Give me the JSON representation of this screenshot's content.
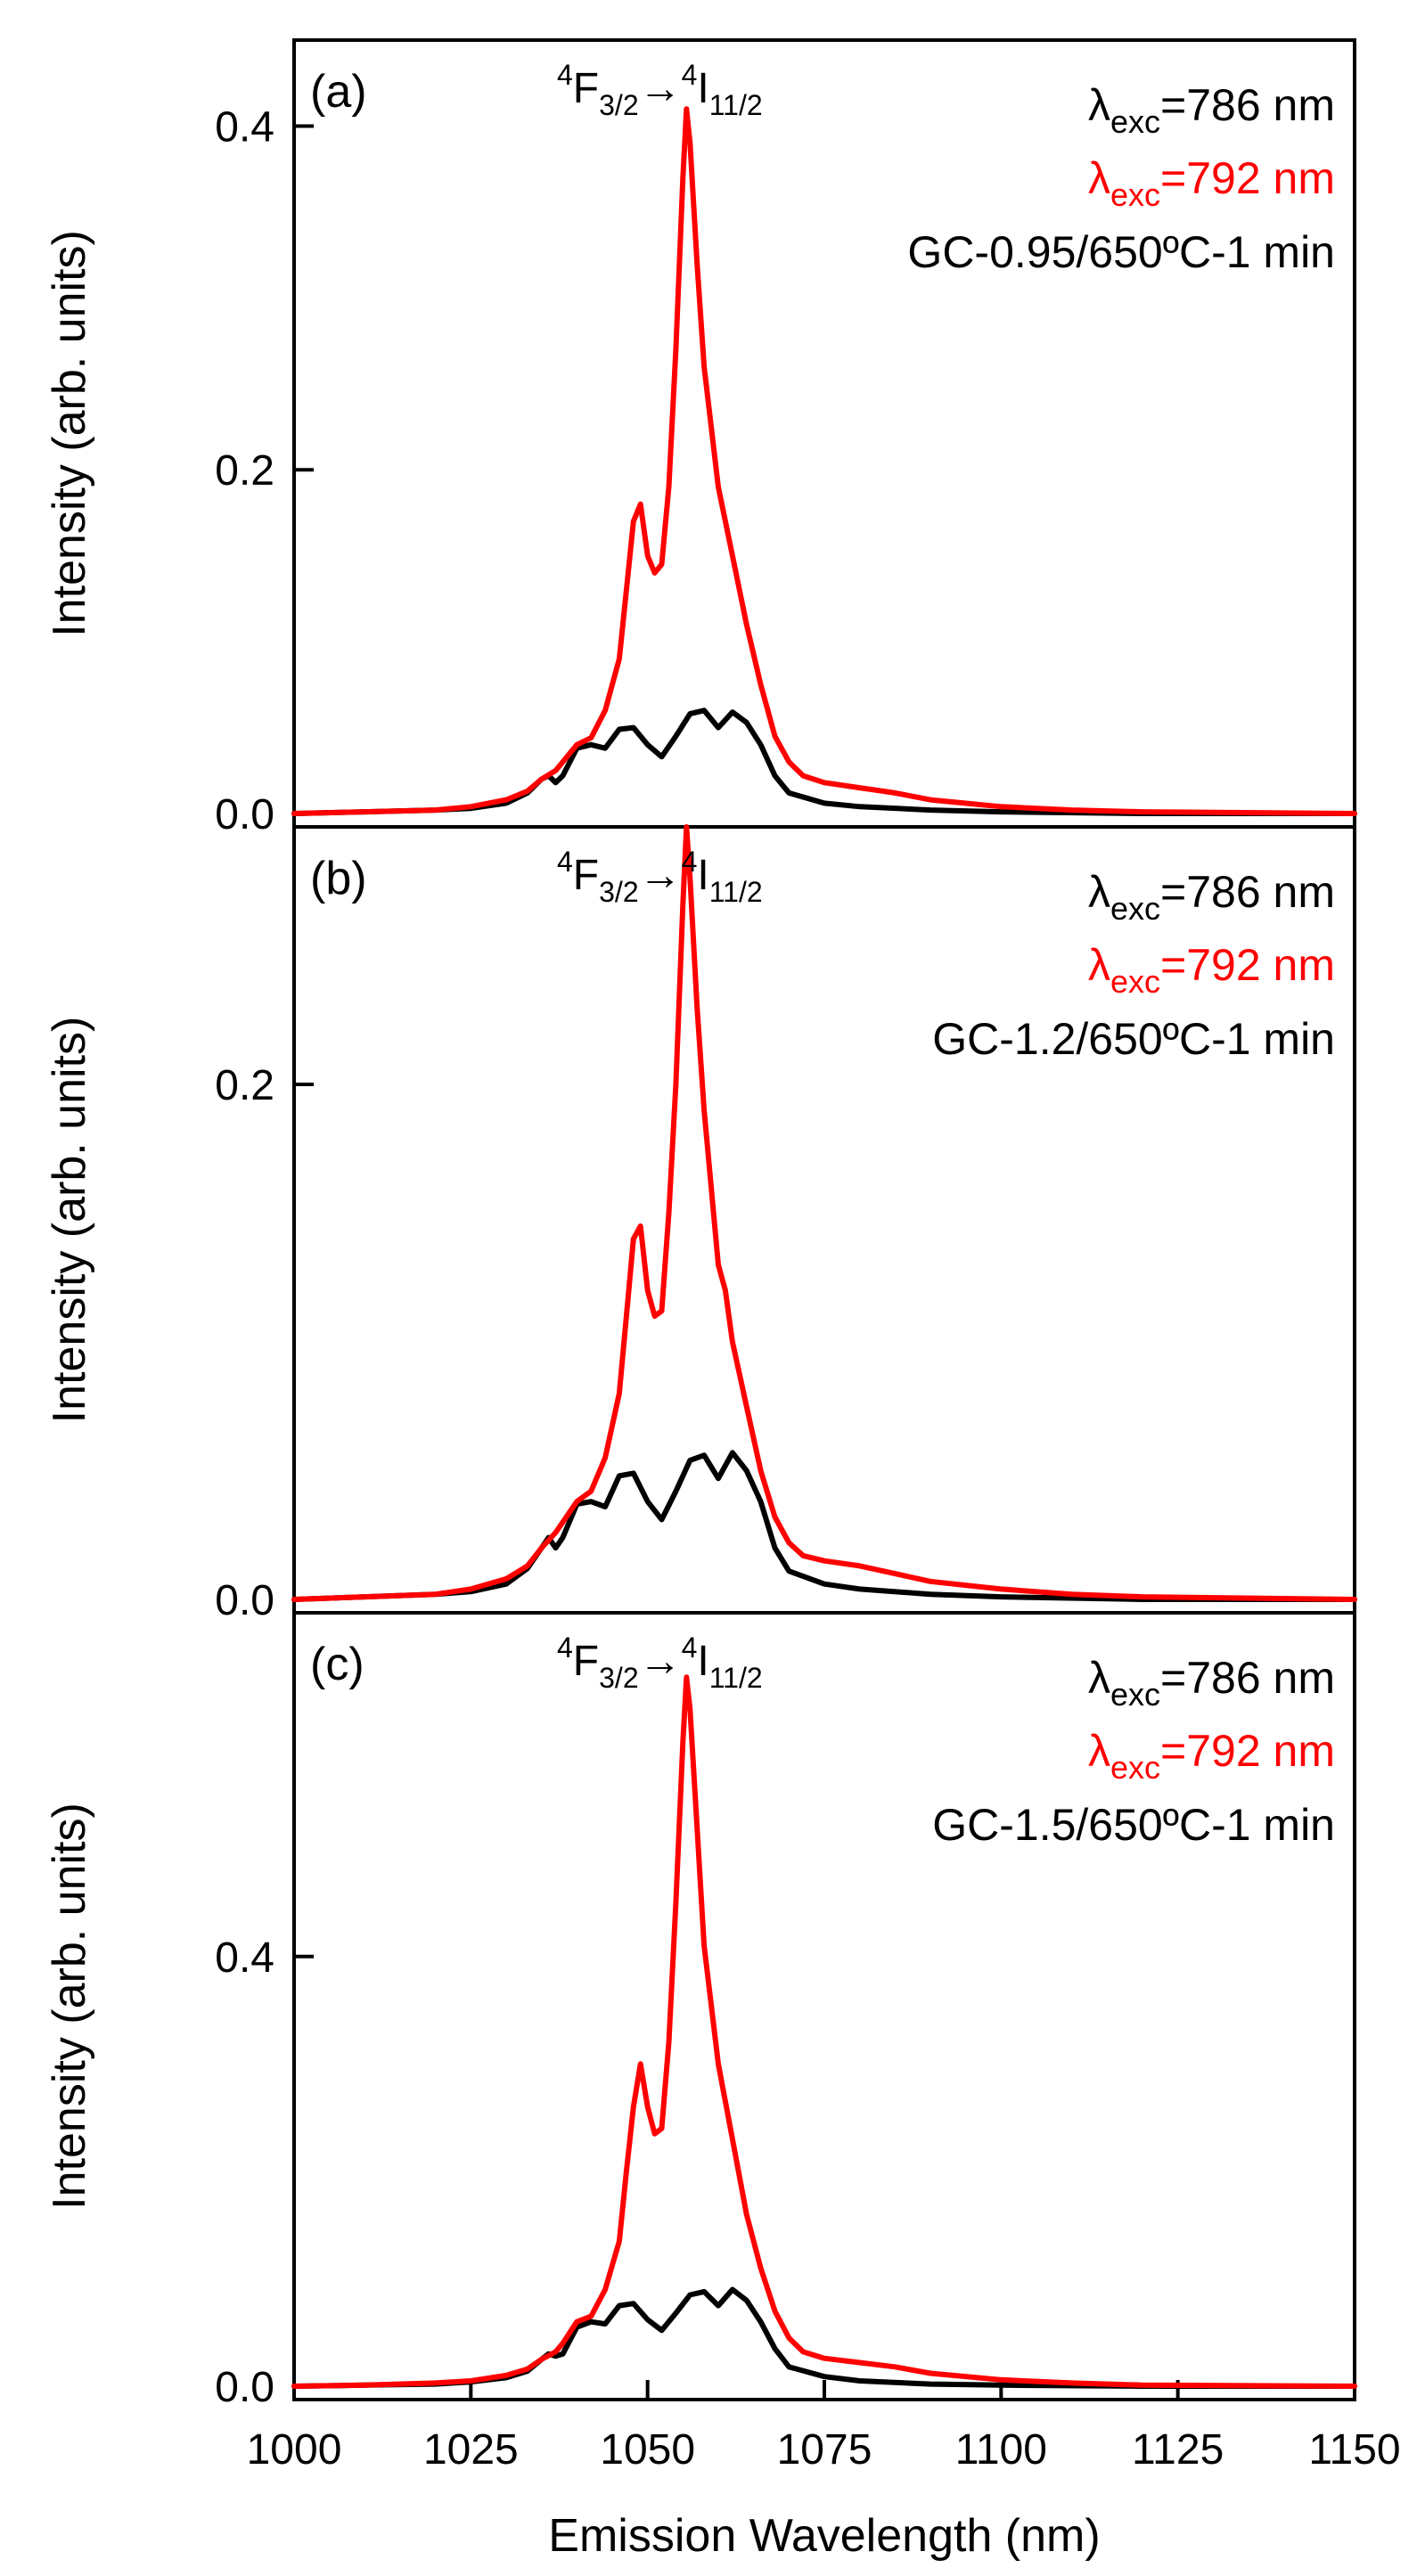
{
  "chart_data": [
    {
      "type": "line",
      "panel_label": "(a)",
      "transition": {
        "upper_sup": "4",
        "upper_main": "F",
        "upper_sub": "3/2",
        "arrow": "→",
        "lower_sup": "4",
        "lower_main": "I",
        "lower_sub": "11/2"
      },
      "legend": [
        {
          "prefix": "λ",
          "sub": "exc",
          "rest": "=786 nm",
          "color": "#000000"
        },
        {
          "prefix": "λ",
          "sub": "exc",
          "rest": "=792 nm",
          "color": "#ff0000"
        }
      ],
      "sample": "GC-0.95/650ºC-1 min",
      "ylabel": "Intensity (arb. units)",
      "xlim": [
        1000,
        1150
      ],
      "ylim": [
        0,
        0.45
      ],
      "yticks": [
        0.0,
        0.2,
        0.4
      ],
      "ytick_labels": [
        "0.0",
        "0.2",
        "0.4"
      ],
      "series": [
        {
          "color": "#000000",
          "x": [
            1000,
            1010,
            1020,
            1025,
            1030,
            1033,
            1035,
            1036,
            1037,
            1038,
            1040,
            1042,
            1044,
            1046,
            1048,
            1050,
            1052,
            1054,
            1056,
            1058,
            1060,
            1062,
            1064,
            1066,
            1068,
            1070,
            1075,
            1080,
            1090,
            1100,
            1120,
            1150
          ],
          "y": [
            0,
            0.001,
            0.002,
            0.003,
            0.006,
            0.012,
            0.02,
            0.022,
            0.018,
            0.022,
            0.038,
            0.04,
            0.038,
            0.049,
            0.05,
            0.04,
            0.033,
            0.045,
            0.058,
            0.06,
            0.05,
            0.059,
            0.053,
            0.04,
            0.022,
            0.012,
            0.006,
            0.004,
            0.002,
            0.001,
            0,
            0
          ]
        },
        {
          "color": "#ff0000",
          "x": [
            1000,
            1010,
            1020,
            1025,
            1030,
            1033,
            1035,
            1037,
            1038,
            1040,
            1042,
            1044,
            1046,
            1047,
            1048,
            1049,
            1050,
            1051,
            1052,
            1053,
            1054,
            1055,
            1055.5,
            1056,
            1057,
            1058,
            1060,
            1062,
            1064,
            1066,
            1068,
            1070,
            1072,
            1075,
            1080,
            1085,
            1090,
            1100,
            1110,
            1120,
            1150
          ],
          "y": [
            0,
            0.001,
            0.002,
            0.004,
            0.008,
            0.013,
            0.02,
            0.025,
            0.03,
            0.04,
            0.044,
            0.06,
            0.09,
            0.13,
            0.17,
            0.18,
            0.15,
            0.14,
            0.145,
            0.19,
            0.27,
            0.37,
            0.41,
            0.39,
            0.32,
            0.26,
            0.19,
            0.15,
            0.11,
            0.075,
            0.045,
            0.03,
            0.022,
            0.018,
            0.015,
            0.012,
            0.008,
            0.004,
            0.002,
            0.001,
            0
          ]
        }
      ]
    },
    {
      "type": "line",
      "panel_label": "(b)",
      "transition": {
        "upper_sup": "4",
        "upper_main": "F",
        "upper_sub": "3/2",
        "arrow": "→",
        "lower_sup": "4",
        "lower_main": "I",
        "lower_sub": "11/2"
      },
      "legend": [
        {
          "prefix": "λ",
          "sub": "exc",
          "rest": "=786 nm",
          "color": "#000000"
        },
        {
          "prefix": "λ",
          "sub": "exc",
          "rest": "=792 nm",
          "color": "#ff0000"
        }
      ],
      "sample": "GC-1.2/650ºC-1 min",
      "ylabel": "Intensity (arb. units)",
      "xlim": [
        1000,
        1150
      ],
      "ylim": [
        0,
        0.3
      ],
      "yticks": [
        0.0,
        0.2
      ],
      "ytick_labels": [
        "0.0",
        "0.2"
      ],
      "series": [
        {
          "color": "#000000",
          "x": [
            1000,
            1010,
            1020,
            1025,
            1030,
            1033,
            1035,
            1036,
            1037,
            1038,
            1040,
            1042,
            1044,
            1046,
            1048,
            1050,
            1052,
            1054,
            1056,
            1058,
            1060,
            1062,
            1064,
            1066,
            1068,
            1070,
            1075,
            1080,
            1090,
            1100,
            1120,
            1150
          ],
          "y": [
            0,
            0.001,
            0.002,
            0.003,
            0.006,
            0.012,
            0.02,
            0.024,
            0.02,
            0.024,
            0.037,
            0.038,
            0.036,
            0.048,
            0.049,
            0.038,
            0.031,
            0.042,
            0.054,
            0.056,
            0.047,
            0.057,
            0.05,
            0.038,
            0.02,
            0.011,
            0.006,
            0.004,
            0.002,
            0.001,
            0,
            0
          ]
        },
        {
          "color": "#ff0000",
          "x": [
            1000,
            1010,
            1020,
            1025,
            1030,
            1033,
            1035,
            1037,
            1038,
            1040,
            1042,
            1044,
            1046,
            1047,
            1048,
            1049,
            1050,
            1051,
            1052,
            1053,
            1054,
            1055,
            1055.5,
            1056,
            1057,
            1058,
            1060,
            1061,
            1062,
            1064,
            1066,
            1068,
            1070,
            1072,
            1075,
            1080,
            1085,
            1090,
            1100,
            1110,
            1120,
            1150
          ],
          "y": [
            0,
            0.001,
            0.002,
            0.004,
            0.008,
            0.013,
            0.02,
            0.026,
            0.03,
            0.038,
            0.042,
            0.055,
            0.08,
            0.11,
            0.14,
            0.145,
            0.12,
            0.11,
            0.112,
            0.15,
            0.2,
            0.27,
            0.3,
            0.28,
            0.23,
            0.19,
            0.13,
            0.12,
            0.1,
            0.075,
            0.05,
            0.032,
            0.022,
            0.017,
            0.015,
            0.013,
            0.01,
            0.007,
            0.004,
            0.002,
            0.001,
            0
          ]
        }
      ]
    },
    {
      "type": "line",
      "panel_label": "(c)",
      "transition": {
        "upper_sup": "4",
        "upper_main": "F",
        "upper_sub": "3/2",
        "arrow": "→",
        "lower_sup": "4",
        "lower_main": "I",
        "lower_sub": "11/2"
      },
      "legend": [
        {
          "prefix": "λ",
          "sub": "exc",
          "rest": "=786 nm",
          "color": "#000000"
        },
        {
          "prefix": "λ",
          "sub": "exc",
          "rest": "=792 nm",
          "color": "#ff0000"
        }
      ],
      "sample": "GC-1.5/650ºC-1 min",
      "ylabel": "Intensity (arb. units)",
      "xlabel": "Emission Wavelength (nm)",
      "xlim": [
        1000,
        1150
      ],
      "ylim": [
        0,
        0.72
      ],
      "yticks": [
        0.0,
        0.4
      ],
      "ytick_labels": [
        "0.0",
        "0.4"
      ],
      "xticks": [
        1000,
        1025,
        1050,
        1075,
        1100,
        1125,
        1150
      ],
      "xtick_labels": [
        "1000",
        "1025",
        "1050",
        "1075",
        "1100",
        "1125",
        "1150"
      ],
      "series": [
        {
          "color": "#000000",
          "x": [
            1000,
            1010,
            1020,
            1025,
            1030,
            1033,
            1035,
            1036,
            1037,
            1038,
            1040,
            1042,
            1044,
            1046,
            1048,
            1050,
            1052,
            1054,
            1056,
            1058,
            1060,
            1062,
            1064,
            1066,
            1068,
            1070,
            1075,
            1080,
            1090,
            1100,
            1120,
            1150
          ],
          "y": [
            0,
            0.001,
            0.002,
            0.004,
            0.008,
            0.014,
            0.025,
            0.03,
            0.028,
            0.03,
            0.055,
            0.06,
            0.058,
            0.075,
            0.077,
            0.062,
            0.052,
            0.068,
            0.085,
            0.088,
            0.075,
            0.09,
            0.08,
            0.06,
            0.035,
            0.018,
            0.009,
            0.005,
            0.002,
            0.001,
            0,
            0
          ]
        },
        {
          "color": "#ff0000",
          "x": [
            1000,
            1010,
            1020,
            1025,
            1030,
            1033,
            1035,
            1037,
            1038,
            1040,
            1042,
            1044,
            1046,
            1047,
            1048,
            1049,
            1050,
            1051,
            1052,
            1053,
            1054,
            1055,
            1055.5,
            1056,
            1057,
            1058,
            1060,
            1062,
            1064,
            1066,
            1068,
            1070,
            1072,
            1075,
            1080,
            1085,
            1090,
            1100,
            1110,
            1120,
            1150
          ],
          "y": [
            0,
            0.001,
            0.003,
            0.005,
            0.01,
            0.016,
            0.025,
            0.032,
            0.04,
            0.06,
            0.065,
            0.09,
            0.135,
            0.2,
            0.26,
            0.3,
            0.26,
            0.235,
            0.24,
            0.32,
            0.45,
            0.6,
            0.66,
            0.63,
            0.52,
            0.41,
            0.3,
            0.23,
            0.16,
            0.11,
            0.07,
            0.045,
            0.032,
            0.026,
            0.022,
            0.018,
            0.012,
            0.006,
            0.003,
            0.001,
            0
          ]
        }
      ]
    }
  ]
}
